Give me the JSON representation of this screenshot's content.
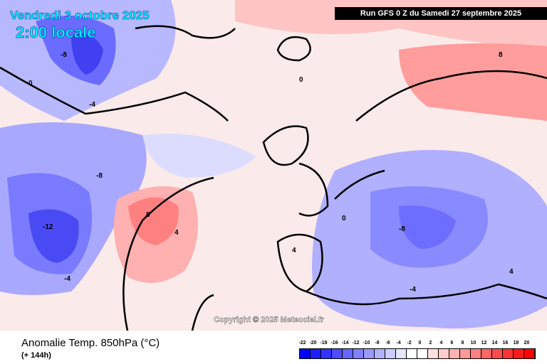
{
  "header": {
    "date": "Vendredi 3 octobre 2025",
    "time": "2:00 locale",
    "run": "Run GFS 0 Z du Samedi 27 septembre 2025"
  },
  "copyright": "Copyright © 2025 Meteociel.fr",
  "footer": {
    "variable": "Anomalie Temp. 850hPa (°C)",
    "lead": "(+ 144h)"
  },
  "legend": {
    "labels": [
      "-22",
      "-20",
      "-18",
      "-16",
      "-14",
      "-12",
      "-10",
      "-8",
      "-6",
      "-4",
      "-2",
      "0",
      "2",
      "4",
      "6",
      "8",
      "10",
      "12",
      "14",
      "16",
      "18",
      "20"
    ],
    "colors": [
      "#0000ff",
      "#1e1eff",
      "#3333ff",
      "#4d4dff",
      "#6666ff",
      "#8080ff",
      "#9999ff",
      "#b3b3ff",
      "#ccccff",
      "#e6e6ff",
      "#ffffff",
      "#ffffff",
      "#ffe0e0",
      "#ffcccc",
      "#ffb3b3",
      "#ff9999",
      "#ff8080",
      "#ff6666",
      "#ff4d4d",
      "#ff3333",
      "#ff1a1a",
      "#ff0000"
    ]
  },
  "contour_labels": [
    "-12",
    "-8",
    "-8",
    "-4",
    "-4",
    "0",
    "0",
    "4",
    "4",
    "8",
    "8",
    "-8",
    "-4",
    "0",
    "4"
  ]
}
